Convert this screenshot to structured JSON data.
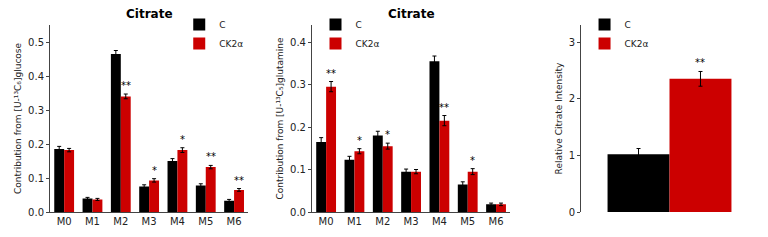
{
  "chart_data": [
    {
      "type": "bar",
      "title": "Citrate",
      "ylabel": "Contribution from [U-¹³C₆]glucose",
      "categories": [
        "M0",
        "M1",
        "M2",
        "M3",
        "M4",
        "M5",
        "M6"
      ],
      "series": [
        {
          "name": "C",
          "color": "#000000",
          "values": [
            0.185,
            0.04,
            0.465,
            0.075,
            0.15,
            0.078,
            0.033
          ],
          "errors": [
            0.008,
            0.003,
            0.01,
            0.005,
            0.007,
            0.005,
            0.004
          ]
        },
        {
          "name": "CK2α",
          "color": "#cc0000",
          "values": [
            0.182,
            0.037,
            0.34,
            0.093,
            0.182,
            0.132,
            0.065
          ],
          "errors": [
            0.005,
            0.003,
            0.007,
            0.005,
            0.007,
            0.005,
            0.004
          ]
        }
      ],
      "ylim": [
        0,
        0.55
      ],
      "yticks": [
        {
          "value": 0,
          "label": "0.0"
        },
        0.1,
        0.2,
        0.3,
        0.4,
        0.5
      ],
      "grid": false,
      "legend": "upper right",
      "annotations": [
        {
          "category": "M2",
          "series": "CK2α",
          "text": "**"
        },
        {
          "category": "M3",
          "series": "CK2α",
          "text": "*"
        },
        {
          "category": "M4",
          "series": "CK2α",
          "text": "*"
        },
        {
          "category": "M5",
          "series": "CK2α",
          "text": "**"
        },
        {
          "category": "M6",
          "series": "CK2α",
          "text": "**"
        }
      ]
    },
    {
      "type": "bar",
      "title": "Citrate",
      "ylabel": "Contribution from [U-¹³C₅]glutamine",
      "categories": [
        "M0",
        "M1",
        "M2",
        "M3",
        "M4",
        "M5",
        "M6"
      ],
      "series": [
        {
          "name": "C",
          "color": "#000000",
          "values": [
            0.165,
            0.123,
            0.18,
            0.095,
            0.355,
            0.065,
            0.018
          ],
          "errors": [
            0.01,
            0.008,
            0.01,
            0.006,
            0.012,
            0.006,
            0.003
          ]
        },
        {
          "name": "CK2α",
          "color": "#cc0000",
          "values": [
            0.295,
            0.143,
            0.155,
            0.095,
            0.215,
            0.095,
            0.018
          ],
          "errors": [
            0.012,
            0.006,
            0.007,
            0.005,
            0.012,
            0.007,
            0.003
          ]
        }
      ],
      "ylim": [
        0,
        0.44
      ],
      "yticks": [
        {
          "value": 0,
          "label": "0.0"
        },
        0.1,
        0.2,
        0.3,
        0.4
      ],
      "grid": false,
      "legend": "upper left",
      "annotations": [
        {
          "category": "M0",
          "series": "CK2α",
          "text": "**"
        },
        {
          "category": "M1",
          "series": "CK2α",
          "text": "*"
        },
        {
          "category": "M2",
          "series": "CK2α",
          "text": "*"
        },
        {
          "category": "M4",
          "series": "CK2α",
          "text": "**"
        },
        {
          "category": "M5",
          "series": "CK2α",
          "text": "*"
        }
      ]
    },
    {
      "type": "bar",
      "ylabel": "Relative Citrate Intensity",
      "categories": [
        null
      ],
      "series": [
        {
          "name": "C",
          "color": "#000000",
          "values": [
            1.02
          ],
          "errors": [
            0.1
          ]
        },
        {
          "name": "CK2α",
          "color": "#cc0000",
          "values": [
            2.35
          ],
          "errors": [
            0.13
          ]
        }
      ],
      "ylim": [
        0,
        3.3
      ],
      "yticks": [
        0,
        1,
        2,
        3
      ],
      "grid": false,
      "legend": "upper left",
      "tick_labels": "y",
      "annotations": [
        {
          "category": null,
          "series": "CK2α",
          "text": "**"
        }
      ]
    }
  ]
}
